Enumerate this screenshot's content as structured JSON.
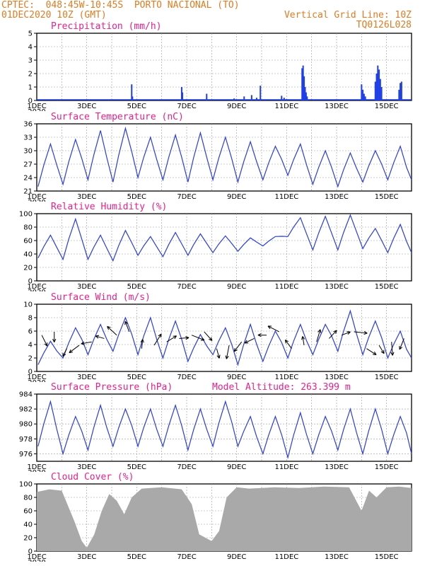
{
  "header": {
    "line1_left": "CPTEC:  048:45W-10:45S  PORTO NACIONAL (TO)",
    "line2_left": "01DEC2020 10Z (GMT)",
    "line2_right": "Vertical Grid Line: 10Z",
    "line3_right": "TQ0126L028"
  },
  "colors": {
    "header": "#e07b20",
    "titles": "#e8208a",
    "series": "#2a3de0",
    "bars": "#1f3fe8",
    "cloud": "#a9a9a9",
    "grid": "#999999"
  },
  "x_tick_labels": [
    "1DEC",
    "3DEC",
    "5DEC",
    "7DEC",
    "9DEC",
    "11DEC",
    "13DEC",
    "15DEC"
  ],
  "year_fragment": "2020",
  "chart_data": [
    {
      "type": "bar",
      "title": "Precipitation (mm/h)",
      "xlim_days": [
        1,
        16
      ],
      "ylim": [
        0,
        5
      ],
      "yticks": [
        0,
        1,
        2,
        3,
        4,
        5
      ],
      "points": [
        [
          4.8,
          1.2
        ],
        [
          4.83,
          0.3
        ],
        [
          6.8,
          1.0
        ],
        [
          6.83,
          0.6
        ],
        [
          7.8,
          0.5
        ],
        [
          8.9,
          0.15
        ],
        [
          9.3,
          0.3
        ],
        [
          9.6,
          0.4
        ],
        [
          9.8,
          0.2
        ],
        [
          9.95,
          1.1
        ],
        [
          10.8,
          0.35
        ],
        [
          10.9,
          0.2
        ],
        [
          11.0,
          0.1
        ],
        [
          11.62,
          2.4
        ],
        [
          11.66,
          2.6
        ],
        [
          11.7,
          1.8
        ],
        [
          11.74,
          1.0
        ],
        [
          11.78,
          0.6
        ],
        [
          11.82,
          0.3
        ],
        [
          14.0,
          1.2
        ],
        [
          14.05,
          0.8
        ],
        [
          14.1,
          0.5
        ],
        [
          14.15,
          0.3
        ],
        [
          14.55,
          1.4
        ],
        [
          14.6,
          2.0
        ],
        [
          14.65,
          2.6
        ],
        [
          14.7,
          2.3
        ],
        [
          14.75,
          1.6
        ],
        [
          14.8,
          1.0
        ],
        [
          15.5,
          0.8
        ],
        [
          15.55,
          1.3
        ],
        [
          15.6,
          1.4
        ]
      ]
    },
    {
      "type": "line",
      "title": "Surface Temperature (nC)",
      "ylim": [
        21,
        36
      ],
      "yticks": [
        21,
        24,
        27,
        30,
        33,
        36
      ],
      "series": [
        {
          "daily_max": [
            31.5,
            32.5,
            34.5,
            35.0,
            33.0,
            33.5,
            34.0,
            33.0,
            32.0,
            31.0,
            31.5,
            30.0,
            29.5,
            30.0,
            31.0
          ],
          "daily_min": [
            22.0,
            22.5,
            23.5,
            23.0,
            24.0,
            23.5,
            23.0,
            23.5,
            23.0,
            23.5,
            24.5,
            22.5,
            22.0,
            23.0,
            23.5
          ]
        }
      ]
    },
    {
      "type": "line",
      "title": "Relative Humidity (%)",
      "ylim": [
        0,
        100
      ],
      "yticks": [
        0,
        20,
        40,
        60,
        80,
        100
      ],
      "series": [
        {
          "daily_max": [
            68,
            92,
            68,
            75,
            66,
            72,
            70,
            67,
            64,
            66,
            94,
            96,
            98,
            78,
            84
          ],
          "daily_min": [
            34,
            32,
            32,
            30,
            38,
            36,
            38,
            42,
            44,
            52,
            66,
            46,
            46,
            48,
            42
          ]
        }
      ]
    },
    {
      "type": "line",
      "title": "Surface Wind (m/s)",
      "ylim": [
        0,
        10
      ],
      "yticks": [
        0,
        2,
        4,
        6,
        8,
        10
      ],
      "series": [
        {
          "daily_max": [
            4.5,
            6.5,
            7.0,
            8.0,
            8.0,
            7.5,
            5.5,
            6.5,
            7.0,
            6.0,
            7.0,
            7.0,
            9.0,
            7.5,
            6.0
          ],
          "daily_min": [
            1.0,
            2.0,
            2.5,
            3.0,
            2.5,
            2.0,
            1.5,
            2.5,
            1.0,
            1.5,
            2.0,
            2.5,
            3.0,
            2.5,
            2.0
          ]
        }
      ]
    },
    {
      "type": "line",
      "title": "Surface Pressure (hPa)",
      "annotation": "Model Altitude: 263.399 m",
      "ylim": [
        975,
        984
      ],
      "yticks": [
        976,
        978,
        980,
        982,
        984
      ],
      "series": [
        {
          "daily_max": [
            983.0,
            981.0,
            982.5,
            982.0,
            982.0,
            982.5,
            982.0,
            983.0,
            981.0,
            981.0,
            981.5,
            981.0,
            982.0,
            982.0,
            981.0
          ],
          "daily_min": [
            977.0,
            976.0,
            976.5,
            977.0,
            977.0,
            977.0,
            976.5,
            977.0,
            977.0,
            976.0,
            975.5,
            976.0,
            976.5,
            976.0,
            976.0
          ]
        }
      ]
    },
    {
      "type": "area",
      "title": "Cloud Cover (%)",
      "ylim": [
        0,
        100
      ],
      "yticks": [
        0,
        20,
        40,
        60,
        80,
        100
      ],
      "x": [
        1.0,
        1.5,
        2.0,
        2.5,
        2.8,
        3.0,
        3.3,
        3.6,
        3.9,
        4.2,
        4.5,
        4.8,
        5.2,
        6.0,
        6.8,
        7.2,
        7.5,
        8.0,
        8.3,
        8.6,
        9.0,
        9.5,
        10.5,
        11.5,
        12.5,
        13.5,
        14.0,
        14.3,
        14.6,
        15.0,
        15.5,
        16.0
      ],
      "values": [
        88,
        92,
        90,
        45,
        15,
        5,
        25,
        60,
        85,
        75,
        55,
        80,
        93,
        95,
        92,
        70,
        25,
        15,
        30,
        80,
        95,
        93,
        95,
        94,
        96,
        95,
        60,
        90,
        80,
        95,
        96,
        94
      ]
    }
  ]
}
